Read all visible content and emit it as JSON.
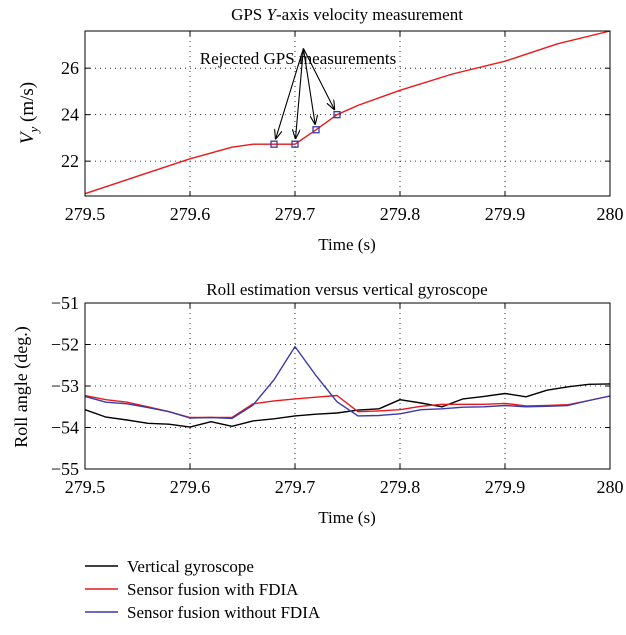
{
  "chart_data": [
    {
      "type": "line",
      "title": "GPS Y-axis velocity measurement",
      "title_parts": [
        "GPS ",
        "Y",
        "-axis velocity measurement"
      ],
      "xlabel": "Time (s)",
      "ylabel": "V_y (m/s)",
      "ylabel_parts": [
        "V",
        "y",
        " (m/s)"
      ],
      "xlim": [
        279.5,
        280
      ],
      "ylim": [
        20.5,
        27.6
      ],
      "xticks": [
        279.5,
        279.6,
        279.7,
        279.8,
        279.9,
        280
      ],
      "yticks": [
        22,
        24,
        26
      ],
      "xtick_labels": [
        "279.5",
        "279.6",
        "279.7",
        "279.8",
        "279.9",
        "280"
      ],
      "ytick_labels": [
        "22",
        "24",
        "26"
      ],
      "grid": "dotted",
      "series": [
        {
          "color": "#e8191c",
          "x": [
            279.5,
            279.55,
            279.6,
            279.64,
            279.66,
            279.68,
            279.7,
            279.72,
            279.74,
            279.76,
            279.8,
            279.85,
            279.9,
            279.95,
            280
          ],
          "y": [
            20.6,
            21.35,
            22.1,
            22.6,
            22.73,
            22.73,
            22.73,
            23.35,
            24.0,
            24.4,
            25.05,
            25.75,
            26.3,
            27.05,
            27.6
          ]
        }
      ],
      "markers": {
        "color": "#3a3aa8",
        "x": [
          279.68,
          279.7,
          279.72,
          279.74
        ],
        "y": [
          22.73,
          22.73,
          23.35,
          24.0
        ]
      },
      "annotation": {
        "text": "Rejected GPS measurements",
        "x": 279.708,
        "y": 26.85
      }
    },
    {
      "type": "line",
      "title": "Roll estimation versus vertical gyroscope",
      "xlabel": "Time (s)",
      "ylabel": "Roll angle (deg.)",
      "xlim": [
        279.5,
        280
      ],
      "ylim": [
        -55,
        -51
      ],
      "xticks": [
        279.5,
        279.6,
        279.7,
        279.8,
        279.9,
        280
      ],
      "yticks": [
        -55,
        -54,
        -53,
        -52,
        -51
      ],
      "xtick_labels": [
        "279.5",
        "279.6",
        "279.7",
        "279.8",
        "279.9",
        "280"
      ],
      "ytick_labels": [
        "−55",
        "−54",
        "−53",
        "−52",
        "−51"
      ],
      "grid": "dotted",
      "series": [
        {
          "name": "Vertical gyroscope",
          "color": "#000000",
          "x": [
            279.5,
            279.52,
            279.54,
            279.56,
            279.58,
            279.6,
            279.62,
            279.64,
            279.66,
            279.68,
            279.7,
            279.72,
            279.74,
            279.76,
            279.78,
            279.8,
            279.82,
            279.84,
            279.86,
            279.88,
            279.9,
            279.92,
            279.94,
            279.96,
            279.98,
            280
          ],
          "y": [
            -53.57,
            -53.75,
            -53.82,
            -53.9,
            -53.92,
            -53.99,
            -53.86,
            -53.97,
            -53.84,
            -53.79,
            -53.72,
            -53.68,
            -53.65,
            -53.58,
            -53.55,
            -53.33,
            -53.41,
            -53.5,
            -53.31,
            -53.25,
            -53.18,
            -53.26,
            -53.1,
            -53.02,
            -52.96,
            -52.95
          ]
        },
        {
          "name": "Sensor fusion with FDIA",
          "color": "#e8191c",
          "x": [
            279.5,
            279.52,
            279.54,
            279.56,
            279.58,
            279.6,
            279.62,
            279.64,
            279.66,
            279.68,
            279.7,
            279.72,
            279.74,
            279.76,
            279.78,
            279.8,
            279.82,
            279.84,
            279.86,
            279.88,
            279.9,
            279.92,
            279.94,
            279.96,
            279.98,
            280
          ],
          "y": [
            -53.23,
            -53.33,
            -53.39,
            -53.5,
            -53.62,
            -53.76,
            -53.76,
            -53.76,
            -53.43,
            -53.36,
            -53.31,
            -53.27,
            -53.23,
            -53.62,
            -53.6,
            -53.57,
            -53.49,
            -53.44,
            -53.44,
            -53.44,
            -53.42,
            -53.48,
            -53.47,
            -53.45,
            -53.35,
            -53.24
          ]
        },
        {
          "name": "Sensor fusion without FDIA",
          "color": "#3a3aa8",
          "x": [
            279.5,
            279.52,
            279.54,
            279.56,
            279.58,
            279.6,
            279.62,
            279.64,
            279.66,
            279.68,
            279.7,
            279.72,
            279.74,
            279.76,
            279.78,
            279.8,
            279.82,
            279.84,
            279.86,
            279.88,
            279.9,
            279.92,
            279.94,
            279.96,
            279.98,
            280
          ],
          "y": [
            -53.25,
            -53.39,
            -53.43,
            -53.52,
            -53.62,
            -53.77,
            -53.76,
            -53.78,
            -53.46,
            -52.85,
            -52.05,
            -52.75,
            -53.38,
            -53.72,
            -53.71,
            -53.67,
            -53.57,
            -53.55,
            -53.51,
            -53.5,
            -53.47,
            -53.5,
            -53.49,
            -53.47,
            -53.35,
            -53.24
          ]
        }
      ]
    }
  ],
  "legend": {
    "placement": "bottom-left",
    "items": [
      {
        "label": "Vertical gyroscope",
        "color": "#000000"
      },
      {
        "label": "Sensor fusion with FDIA",
        "color": "#e8191c"
      },
      {
        "label": "Sensor fusion without FDIA",
        "color": "#3a3aa8"
      }
    ]
  }
}
